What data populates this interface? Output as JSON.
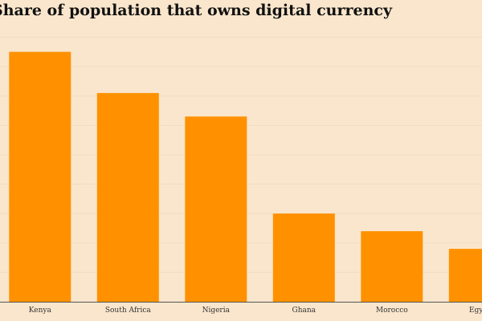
{
  "colors": {
    "background": "#fae6cc",
    "bar": "#ff9100",
    "axis": "#555555",
    "grid": "#f2dcc0"
  },
  "chart_data": {
    "type": "bar",
    "title": "Share of population that owns digital currency",
    "xlabel": "",
    "ylabel": "",
    "categories": [
      "Kenya",
      "South Africa",
      "Nigeria",
      "Ghana",
      "Morocco",
      "Egypt"
    ],
    "values": [
      8.5,
      7.1,
      6.3,
      3.0,
      2.4,
      1.8
    ],
    "ylim": [
      0,
      9.5
    ],
    "grid": true,
    "legend": "none"
  }
}
